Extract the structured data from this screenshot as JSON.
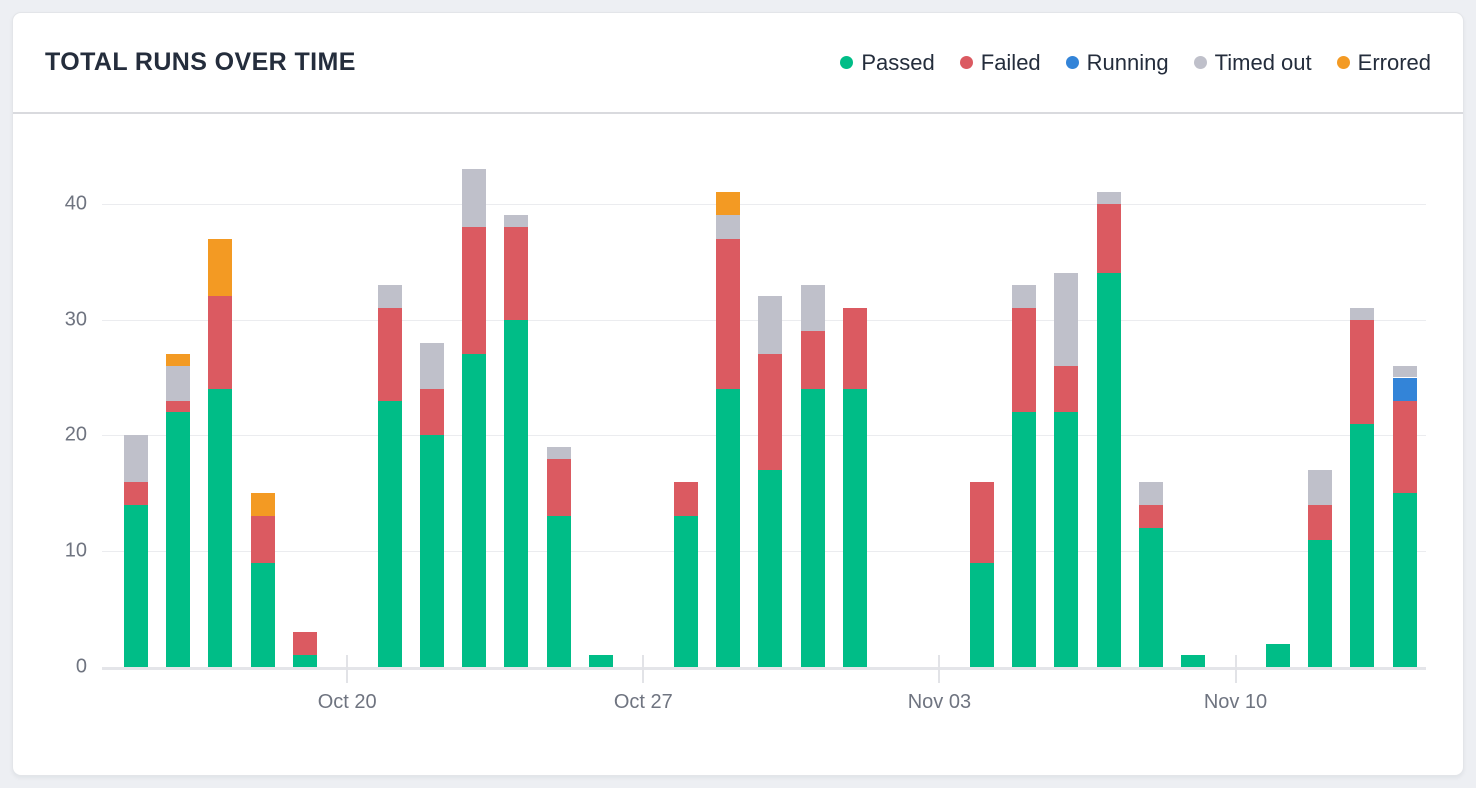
{
  "header": {
    "title": "TOTAL RUNS OVER TIME"
  },
  "legend": {
    "items": [
      {
        "id": "passed",
        "label": "Passed",
        "color": "#00BD87",
        "icon": "passed-dot-icon"
      },
      {
        "id": "failed",
        "label": "Failed",
        "color": "#DB5A61",
        "icon": "failed-dot-icon"
      },
      {
        "id": "running",
        "label": "Running",
        "color": "#3384D8",
        "icon": "running-dot-icon"
      },
      {
        "id": "timed_out",
        "label": "Timed out",
        "color": "#BFC0CA",
        "icon": "timed-out-dot-icon"
      },
      {
        "id": "errored",
        "label": "Errored",
        "color": "#F39A23",
        "icon": "errored-dot-icon"
      }
    ]
  },
  "chart_data": {
    "type": "bar",
    "stacked": true,
    "title": "TOTAL RUNS OVER TIME",
    "legend_position": "top-right",
    "grid": true,
    "n_slots": 31,
    "ylim": [
      0,
      44
    ],
    "y_ticks": [
      0,
      10,
      20,
      30,
      40
    ],
    "x_ticks": [
      {
        "slot": 5,
        "label": "Oct 20"
      },
      {
        "slot": 12,
        "label": "Oct 27"
      },
      {
        "slot": 19,
        "label": "Nov 03"
      },
      {
        "slot": 26,
        "label": "Nov 10"
      }
    ],
    "series": [
      {
        "name": "Passed",
        "color": "#00BD87",
        "values": [
          14,
          22,
          24,
          9,
          1,
          0,
          23,
          20,
          27,
          30,
          13,
          1,
          0,
          13,
          24,
          17,
          24,
          24,
          0,
          0,
          9,
          22,
          22,
          34,
          12,
          1,
          0,
          2,
          11,
          21,
          15
        ]
      },
      {
        "name": "Failed",
        "color": "#DB5A61",
        "values": [
          2,
          1,
          8,
          4,
          2,
          0,
          8,
          4,
          11,
          8,
          5,
          0,
          0,
          3,
          13,
          10,
          5,
          7,
          0,
          0,
          7,
          9,
          4,
          6,
          2,
          0,
          0,
          0,
          3,
          9,
          8
        ]
      },
      {
        "name": "Running",
        "color": "#3384D8",
        "values": [
          0,
          0,
          0,
          0,
          0,
          0,
          0,
          0,
          0,
          0,
          0,
          0,
          0,
          0,
          0,
          0,
          0,
          0,
          0,
          0,
          0,
          0,
          0,
          0,
          0,
          0,
          0,
          0,
          0,
          0,
          2
        ]
      },
      {
        "name": "Timed out",
        "color": "#BFC0CA",
        "values": [
          4,
          3,
          0,
          0,
          0,
          0,
          2,
          4,
          5,
          1,
          1,
          0,
          0,
          0,
          2,
          5,
          4,
          0,
          0,
          0,
          0,
          2,
          8,
          1,
          2,
          0,
          0,
          0,
          3,
          1,
          1
        ]
      },
      {
        "name": "Errored",
        "color": "#F39A23",
        "values": [
          0,
          1,
          5,
          2,
          0,
          0,
          0,
          0,
          0,
          0,
          0,
          0,
          0,
          0,
          2,
          0,
          0,
          0,
          0,
          0,
          0,
          0,
          0,
          0,
          0,
          0,
          0,
          0,
          0,
          0,
          0
        ]
      }
    ],
    "bar_totals": [
      20,
      27,
      37,
      15,
      3,
      0,
      33,
      28,
      43,
      39,
      19,
      1,
      0,
      16,
      41,
      32,
      33,
      31,
      0,
      0,
      16,
      33,
      34,
      41,
      16,
      1,
      0,
      2,
      17,
      31,
      26
    ]
  }
}
